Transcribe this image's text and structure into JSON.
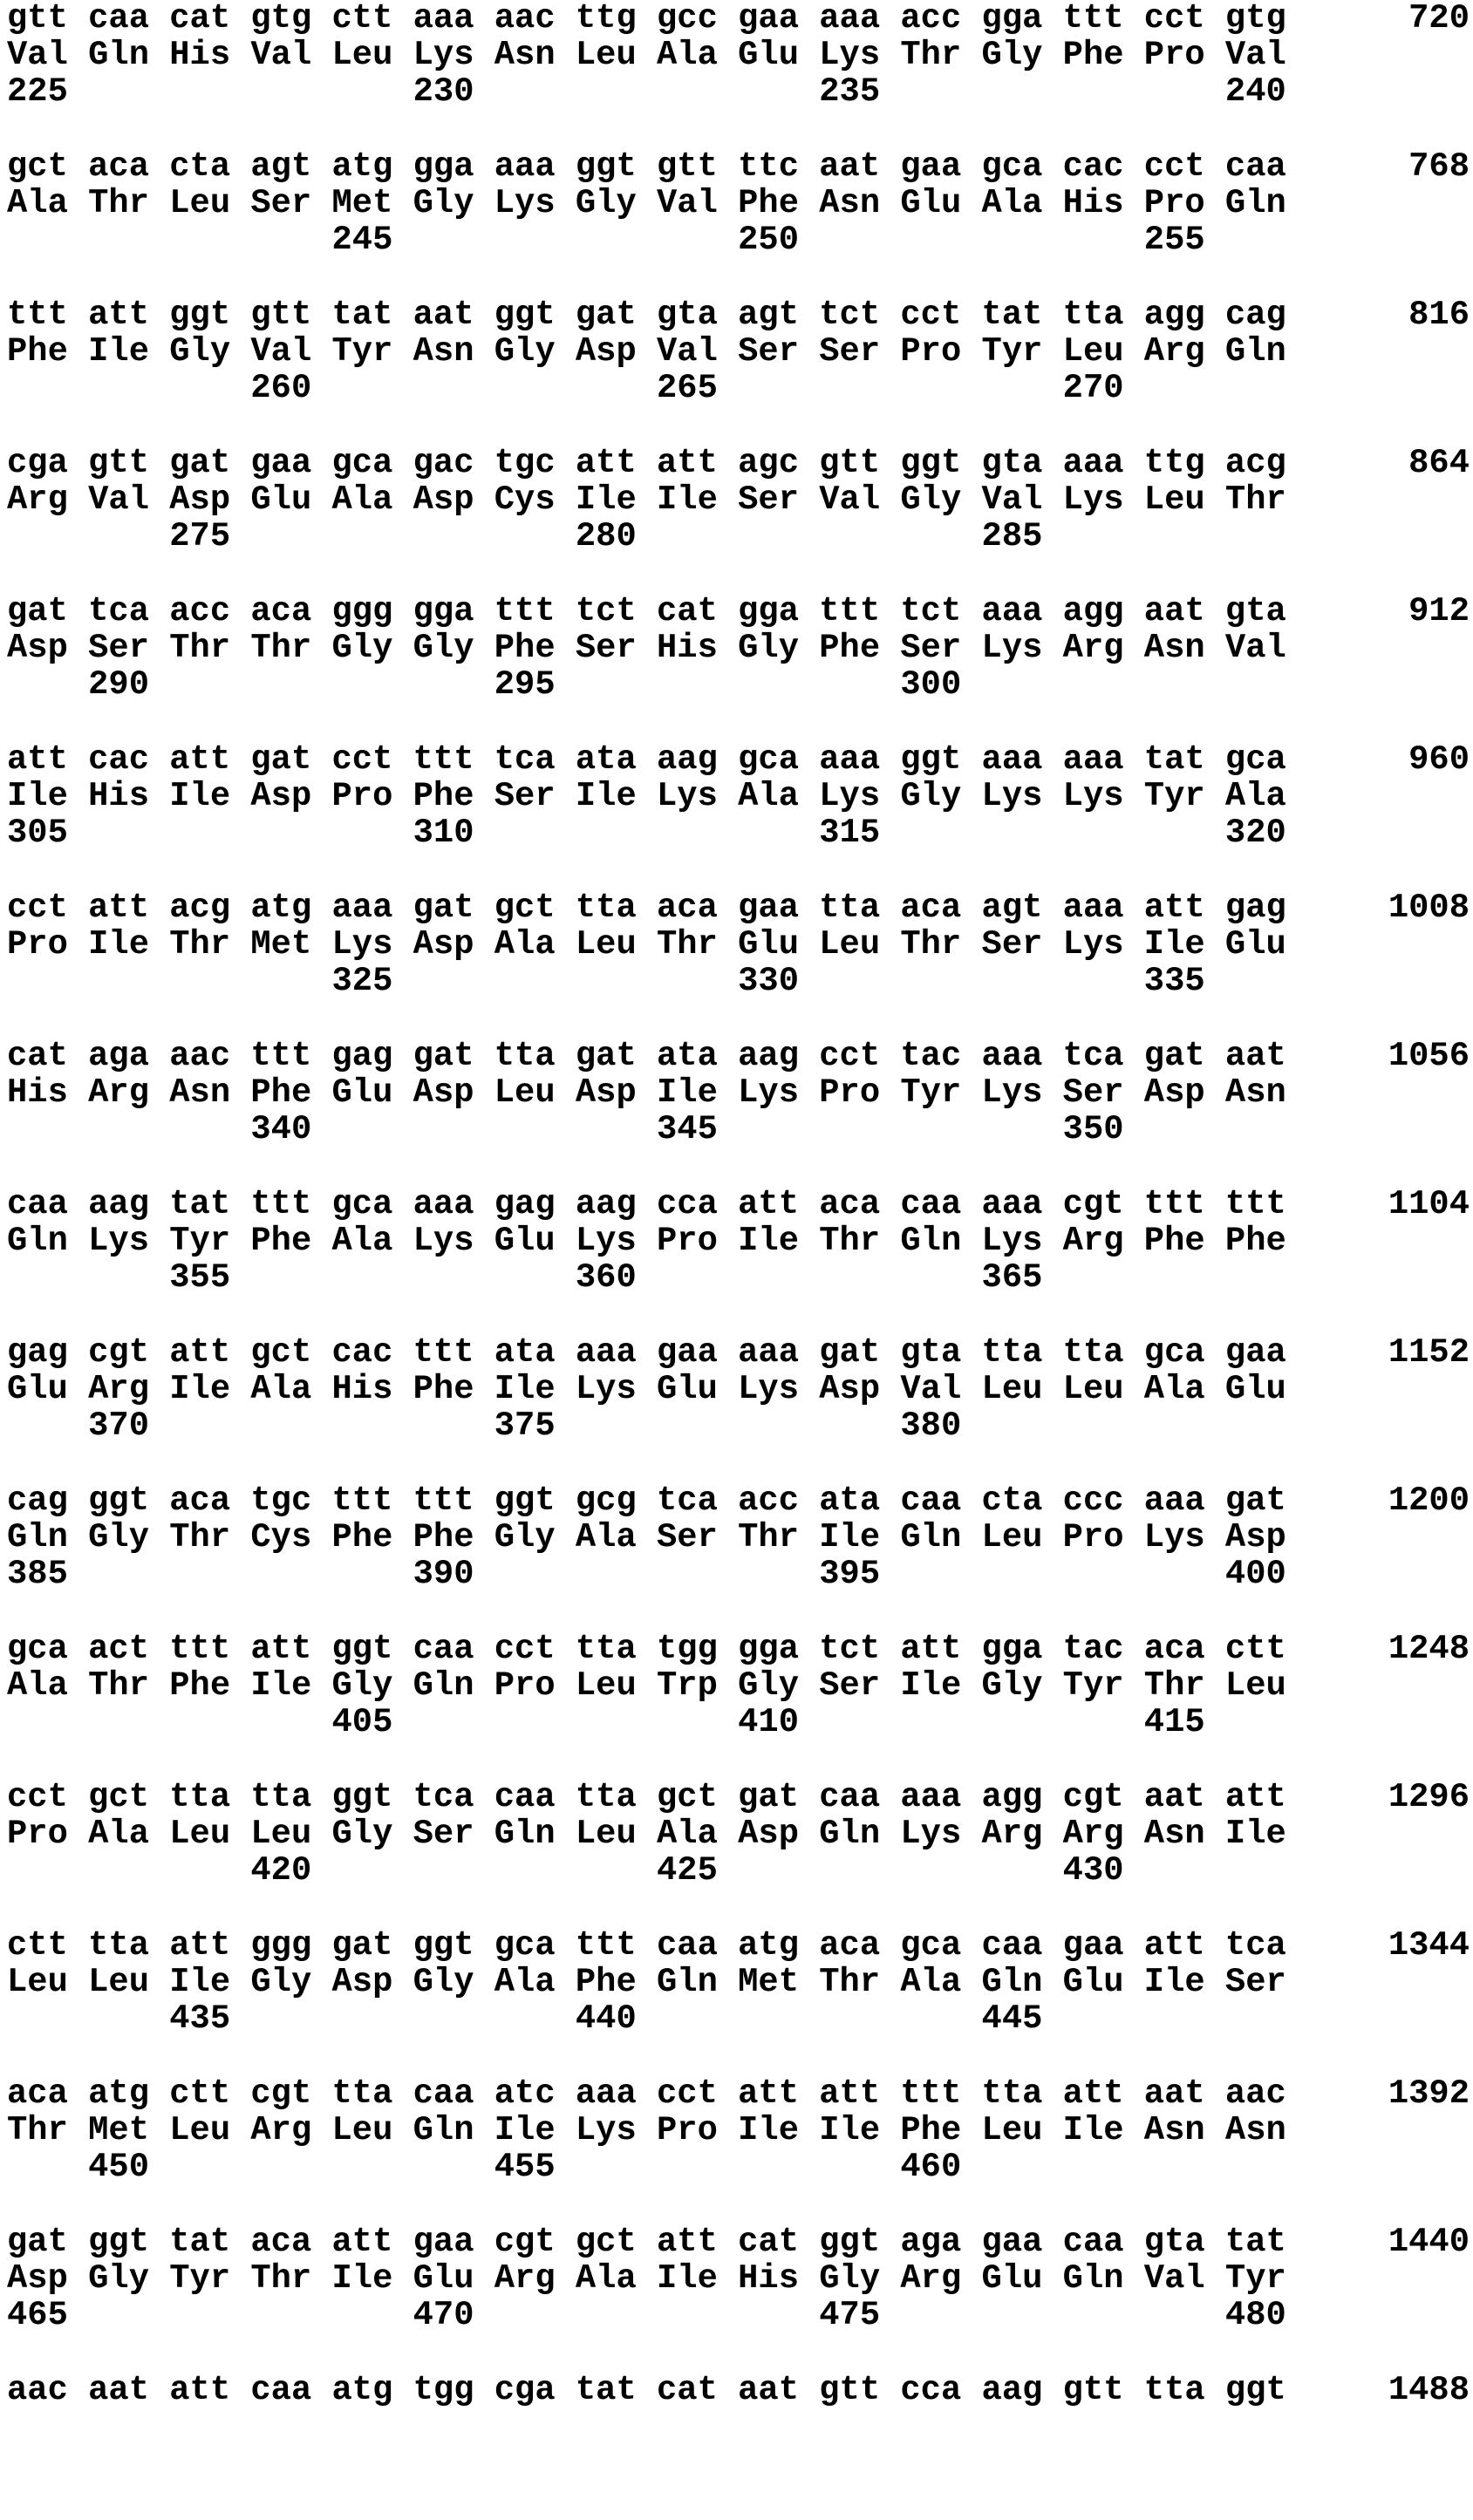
{
  "blocks": [
    {
      "dna": "gtt caa cat gtg ctt aaa aac ttg gcc gaa aaa acc gga ttt cct gtg",
      "nt_position": "720",
      "protein": "Val Gln His Val Leu Lys Asn Leu Ala Glu Lys Thr Gly Phe Pro Val",
      "aa_numbering": "225                 230                 235                 240"
    },
    {
      "dna": "gct aca cta agt atg gga aaa ggt gtt ttc aat gaa gca cac cct caa",
      "nt_position": "768",
      "protein": "Ala Thr Leu Ser Met Gly Lys Gly Val Phe Asn Glu Ala His Pro Gln",
      "aa_numbering": "                245                 250                 255"
    },
    {
      "dna": "ttt att ggt gtt tat aat ggt gat gta agt tct cct tat tta agg cag",
      "nt_position": "816",
      "protein": "Phe Ile Gly Val Tyr Asn Gly Asp Val Ser Ser Pro Tyr Leu Arg Gln",
      "aa_numbering": "            260                 265                 270"
    },
    {
      "dna": "cga gtt gat gaa gca gac tgc att att agc gtt ggt gta aaa ttg acg",
      "nt_position": "864",
      "protein": "Arg Val Asp Glu Ala Asp Cys Ile Ile Ser Val Gly Val Lys Leu Thr",
      "aa_numbering": "        275                 280                 285"
    },
    {
      "dna": "gat tca acc aca ggg gga ttt tct cat gga ttt tct aaa agg aat gta",
      "nt_position": "912",
      "protein": "Asp Ser Thr Thr Gly Gly Phe Ser His Gly Phe Ser Lys Arg Asn Val",
      "aa_numbering": "    290                 295                 300"
    },
    {
      "dna": "att cac att gat cct ttt tca ata aag gca aaa ggt aaa aaa tat gca",
      "nt_position": "960",
      "protein": "Ile His Ile Asp Pro Phe Ser Ile Lys Ala Lys Gly Lys Lys Tyr Ala",
      "aa_numbering": "305                 310                 315                 320"
    },
    {
      "dna": "cct att acg atg aaa gat gct tta aca gaa tta aca agt aaa att gag",
      "nt_position": "1008",
      "protein": "Pro Ile Thr Met Lys Asp Ala Leu Thr Glu Leu Thr Ser Lys Ile Glu",
      "aa_numbering": "                325                 330                 335"
    },
    {
      "dna": "cat aga aac ttt gag gat tta gat ata aag cct tac aaa tca gat aat",
      "nt_position": "1056",
      "protein": "His Arg Asn Phe Glu Asp Leu Asp Ile Lys Pro Tyr Lys Ser Asp Asn",
      "aa_numbering": "            340                 345                 350"
    },
    {
      "dna": "caa aag tat ttt gca aaa gag aag cca att aca caa aaa cgt ttt ttt",
      "nt_position": "1104",
      "protein": "Gln Lys Tyr Phe Ala Lys Glu Lys Pro Ile Thr Gln Lys Arg Phe Phe",
      "aa_numbering": "        355                 360                 365"
    },
    {
      "dna": "gag cgt att gct cac ttt ata aaa gaa aaa gat gta tta tta gca gaa",
      "nt_position": "1152",
      "protein": "Glu Arg Ile Ala His Phe Ile Lys Glu Lys Asp Val Leu Leu Ala Glu",
      "aa_numbering": "    370                 375                 380"
    },
    {
      "dna": "cag ggt aca tgc ttt ttt ggt gcg tca acc ata caa cta ccc aaa gat",
      "nt_position": "1200",
      "protein": "Gln Gly Thr Cys Phe Phe Gly Ala Ser Thr Ile Gln Leu Pro Lys Asp",
      "aa_numbering": "385                 390                 395                 400"
    },
    {
      "dna": "gca act ttt att ggt caa cct tta tgg gga tct att gga tac aca ctt",
      "nt_position": "1248",
      "protein": "Ala Thr Phe Ile Gly Gln Pro Leu Trp Gly Ser Ile Gly Tyr Thr Leu",
      "aa_numbering": "                405                 410                 415"
    },
    {
      "dna": "cct gct tta tta ggt tca caa tta gct gat caa aaa agg cgt aat att",
      "nt_position": "1296",
      "protein": "Pro Ala Leu Leu Gly Ser Gln Leu Ala Asp Gln Lys Arg Arg Asn Ile",
      "aa_numbering": "            420                 425                 430"
    },
    {
      "dna": "ctt tta att ggg gat ggt gca ttt caa atg aca gca caa gaa att tca",
      "nt_position": "1344",
      "protein": "Leu Leu Ile Gly Asp Gly Ala Phe Gln Met Thr Ala Gln Glu Ile Ser",
      "aa_numbering": "        435                 440                 445"
    },
    {
      "dna": "aca atg ctt cgt tta caa atc aaa cct att att ttt tta att aat aac",
      "nt_position": "1392",
      "protein": "Thr Met Leu Arg Leu Gln Ile Lys Pro Ile Ile Phe Leu Ile Asn Asn",
      "aa_numbering": "    450                 455                 460"
    },
    {
      "dna": "gat ggt tat aca att gaa cgt gct att cat ggt aga gaa caa gta tat",
      "nt_position": "1440",
      "protein": "Asp Gly Tyr Thr Ile Glu Arg Ala Ile His Gly Arg Glu Gln Val Tyr",
      "aa_numbering": "465                 470                 475                 480"
    },
    {
      "dna": "aac aat att caa atg tgg cga tat cat aat gtt cca aag gtt tta ggt",
      "nt_position": "1488"
    }
  ]
}
